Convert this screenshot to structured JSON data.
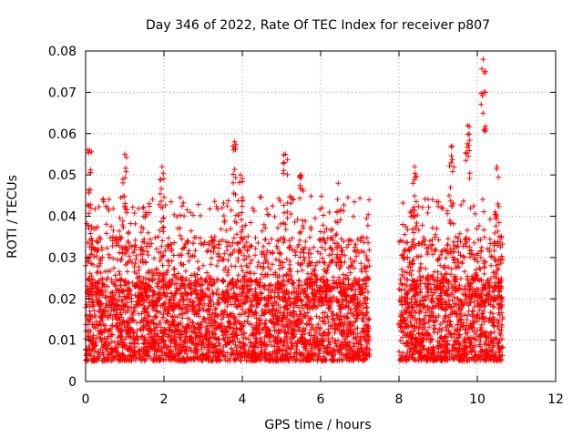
{
  "chart_data": {
    "type": "scatter",
    "title": "Day 346 of 2022, Rate Of TEC Index for receiver p807",
    "xlabel": "GPS time / hours",
    "ylabel": "ROTI / TECUs",
    "xlim": [
      0,
      12
    ],
    "ylim": [
      0,
      0.08
    ],
    "grid": true,
    "marker": "+",
    "color": "#ff0000",
    "x_ticks": [
      0,
      2,
      4,
      6,
      8,
      10,
      12
    ],
    "x_tick_labels": [
      "0",
      "2",
      "4",
      "6",
      "8",
      "10",
      "12"
    ],
    "y_ticks": [
      0,
      0.01,
      0.02,
      0.03,
      0.04,
      0.05,
      0.06,
      0.07,
      0.08
    ],
    "y_tick_labels": [
      "0",
      "0.01",
      "0.02",
      "0.03",
      "0.04",
      "0.05",
      "0.06",
      "0.07",
      "0.08"
    ],
    "series": [
      {
        "name": "p807",
        "segments": [
          {
            "x_start": 0.0,
            "x_end": 7.25,
            "typical_low": 0.005,
            "typical_high": 0.025
          },
          {
            "x_start": 8.0,
            "x_end": 10.65,
            "typical_low": 0.005,
            "typical_high": 0.025
          }
        ],
        "peaks": [
          {
            "x": 0.1,
            "y": 0.056
          },
          {
            "x": 1.0,
            "y": 0.055
          },
          {
            "x": 1.95,
            "y": 0.052
          },
          {
            "x": 3.8,
            "y": 0.058
          },
          {
            "x": 3.95,
            "y": 0.05
          },
          {
            "x": 5.1,
            "y": 0.055
          },
          {
            "x": 5.5,
            "y": 0.05
          },
          {
            "x": 6.45,
            "y": 0.048
          },
          {
            "x": 8.4,
            "y": 0.052
          },
          {
            "x": 9.35,
            "y": 0.057
          },
          {
            "x": 9.75,
            "y": 0.062
          },
          {
            "x": 10.15,
            "y": 0.078
          },
          {
            "x": 10.5,
            "y": 0.052
          }
        ]
      }
    ]
  }
}
